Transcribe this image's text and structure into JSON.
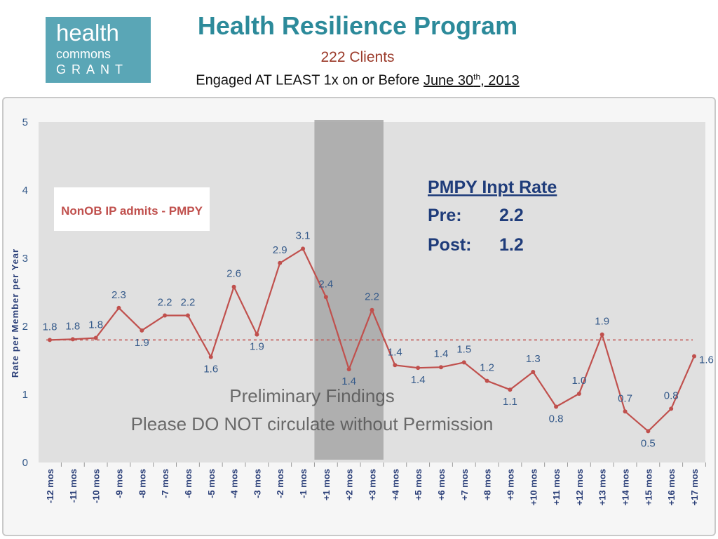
{
  "logo": {
    "line1": "health",
    "line2": "commons",
    "line3": "GRANT"
  },
  "header": {
    "title": "Health Resilience Program",
    "subtitle": "222 Clients",
    "engaged_prefix": "Engaged AT LEAST 1x  on or Before ",
    "engaged_date_a": "June 30",
    "engaged_date_sup": "th",
    "engaged_date_b": ", 2013"
  },
  "legend_box": {
    "text": "NonOB IP admits - PMPY"
  },
  "rate_box": {
    "title": "PMPY Inpt Rate",
    "pre_label": "Pre:",
    "pre_value": "2.2",
    "post_label": "Post:",
    "post_value": "1.2"
  },
  "watermark": {
    "line1": "Preliminary Findings",
    "line2": "Please DO NOT circulate without Permission"
  },
  "colors": {
    "line": "#c0504d",
    "plot_bg": "#e0e0e0",
    "shade": "#a6a6a6",
    "rate_text": "#1f3c7a"
  },
  "chart_data": {
    "type": "line",
    "ylabel": "Rate per Member per Year",
    "ylim": [
      0,
      5
    ],
    "yticks": [
      "0",
      "1",
      "2",
      "3",
      "4",
      "5"
    ],
    "categories": [
      "-12 mos",
      "-11 mos",
      "-10 mos",
      "-9 mos",
      "-8 mos",
      "-7 mos",
      "-6 mos",
      "-5 mos",
      "-4 mos",
      "-3 mos",
      "-2 mos",
      "-1 mos",
      "+1 mos",
      "+2 mos",
      "+3 mos",
      "+4 mos",
      "+5 mos",
      "+6 mos",
      "+7 mos",
      "+8 mos",
      "+9 mos",
      "+10 mos",
      "+11 mos",
      "+12 mos",
      "+13 mos",
      "+14 mos",
      "+15 mos",
      "+16 mos",
      "+17 mos"
    ],
    "values": [
      1.8,
      1.81,
      1.83,
      2.27,
      1.94,
      2.16,
      2.16,
      1.55,
      2.58,
      1.88,
      2.93,
      3.14,
      2.43,
      1.37,
      2.24,
      1.43,
      1.39,
      1.4,
      1.47,
      1.2,
      1.07,
      1.33,
      0.82,
      1.01,
      1.88,
      0.75,
      0.46,
      0.79,
      1.56
    ],
    "data_labels": [
      "1.8",
      "1.8",
      "1.8",
      "2.3",
      "1.9",
      "2.2",
      "2.2",
      "1.6",
      "2.6",
      "1.9",
      "2.9",
      "3.1",
      "2.4",
      "1.4",
      "2.2",
      "1.4",
      "1.4",
      "1.4",
      "1.5",
      "1.2",
      "1.1",
      "1.3",
      "0.8",
      "1.0",
      "1.9",
      "0.7",
      "0.5",
      "0.8",
      "1.6"
    ],
    "reference_line": 1.8,
    "shaded_range": [
      "+1 mos",
      "+3 mos"
    ],
    "grid": false
  }
}
